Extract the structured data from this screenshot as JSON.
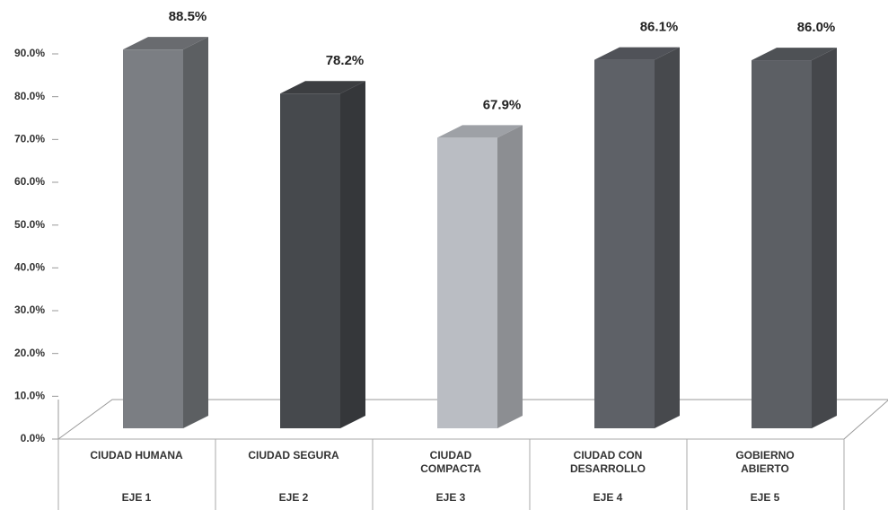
{
  "chart_data": {
    "type": "bar3d",
    "categories": [
      [
        "CIUDAD HUMANA"
      ],
      [
        "CIUDAD SEGURA"
      ],
      [
        "CIUDAD",
        "COMPACTA"
      ],
      [
        "CIUDAD CON",
        "DESARROLLO"
      ],
      [
        "GOBIERNO",
        "ABIERTO"
      ]
    ],
    "groups": [
      "EJE 1",
      "EJE 2",
      "EJE 3",
      "EJE 4",
      "EJE 5"
    ],
    "values": [
      88.5,
      78.2,
      67.9,
      86.1,
      86.0
    ],
    "value_labels": [
      "88.5%",
      "78.2%",
      "67.9%",
      "86.1%",
      "86.0%"
    ],
    "colors": [
      "#7b7e83",
      "#46494d",
      "#babdc3",
      "#5e6167",
      "#5c5f64"
    ],
    "ylim": [
      0,
      90
    ],
    "yticks": [
      {
        "value": 0,
        "label": "0.0%"
      },
      {
        "value": 10,
        "label": "10.0%"
      },
      {
        "value": 20,
        "label": "20.0%"
      },
      {
        "value": 30,
        "label": "30.0%"
      },
      {
        "value": 40,
        "label": "40.0%"
      },
      {
        "value": 50,
        "label": "50.0%"
      },
      {
        "value": 60,
        "label": "60.0%"
      },
      {
        "value": 70,
        "label": "70.0%"
      },
      {
        "value": 80,
        "label": "80.0%"
      },
      {
        "value": 90,
        "label": "90.0%"
      }
    ]
  }
}
